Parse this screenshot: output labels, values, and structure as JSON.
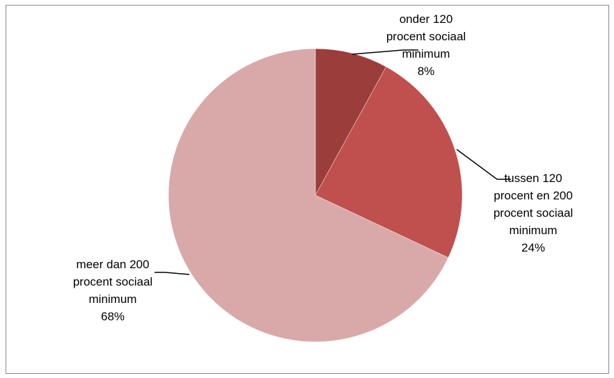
{
  "chart_data": {
    "type": "pie",
    "title": "",
    "legend": "none",
    "slices": [
      {
        "label_lines": [
          "onder 120",
          "procent sociaal",
          "minimum"
        ],
        "value": 8,
        "value_label": "8%",
        "color": "#9B3D3B"
      },
      {
        "label_lines": [
          "tussen 120",
          "procent en 200",
          "procent sociaal",
          "minimum"
        ],
        "value": 24,
        "value_label": "24%",
        "color": "#C0504D"
      },
      {
        "label_lines": [
          "meer dan 200",
          "procent sociaal",
          "minimum"
        ],
        "value": 68,
        "value_label": "68%",
        "color": "#D9A9A9"
      }
    ]
  }
}
